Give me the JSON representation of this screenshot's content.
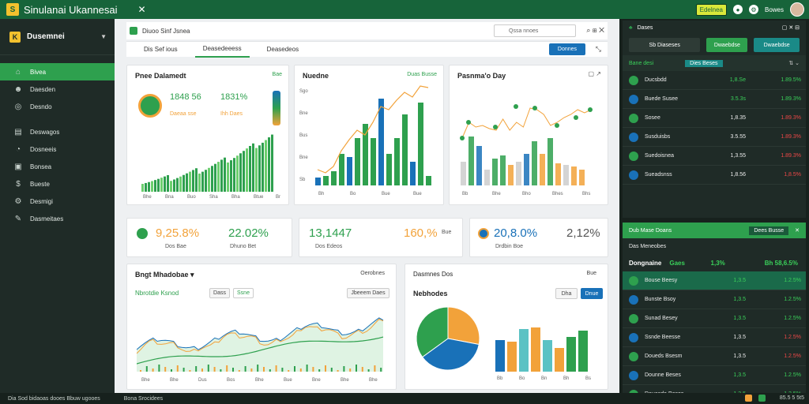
{
  "titlebar": {
    "title": "Sinulanai Ukannesai",
    "close": "✕",
    "badge": "Edelnea",
    "user": "Bowes"
  },
  "sidebar": {
    "header": "Dusemnei",
    "items": [
      {
        "label": "Bivea",
        "icon": "home-icon"
      },
      {
        "label": "Daesden",
        "icon": "people-icon"
      },
      {
        "label": "Desndo",
        "icon": "globe-icon"
      },
      {
        "label": "Deswagos",
        "icon": "book-icon"
      },
      {
        "label": "Dosneeis",
        "icon": "chart-icon"
      },
      {
        "label": "Bonsea",
        "icon": "doc-icon"
      },
      {
        "label": "Bueste",
        "icon": "dollar-icon"
      },
      {
        "label": "Desmigi",
        "icon": "gear-icon"
      },
      {
        "label": "Dasmeitaes",
        "icon": "pin-icon"
      }
    ]
  },
  "toolbar": {
    "label1": "Diuoo Sinf Jsnea",
    "search_placeholder": "Qssa nnoes"
  },
  "tabs": [
    {
      "label": "Dis Sef ious"
    },
    {
      "label": "Deasedeeess"
    },
    {
      "label": "Deasedeos"
    }
  ],
  "tab_button": "Donnes",
  "card1": {
    "title": "Pnee Dalamedt",
    "badge": "Bae",
    "value1": "1848 56",
    "value2": "1831%",
    "tag1": "Daeaa sse",
    "tag2": "Ihh Daes",
    "ticks": [
      "Bhe",
      "Bna",
      "Buo",
      "Sha",
      "Bha",
      "Btue",
      "Bna"
    ]
  },
  "card2": {
    "title": "Nuedne",
    "badge": "Duas Busse",
    "ticks": [
      "Bh",
      "Bo",
      "Bue",
      "Bue"
    ],
    "yticks": [
      "Sgo",
      "Bne",
      "Bus",
      "Bne",
      "Sb"
    ]
  },
  "card3": {
    "title": "Pasnma'o Day",
    "ticks": [
      "Bb",
      "Bhe",
      "Bho",
      "Bhes",
      "Bhs"
    ]
  },
  "kpis": [
    {
      "value": "9,25.8%",
      "sub": "Dos Bae",
      "sub2": "Dhuno Bet",
      "value2": "22.02%"
    },
    {
      "value": "13,1447",
      "sub": "Dos Edeos",
      "value2": "160,%",
      "sub2": "Bue"
    },
    {
      "value": "20,8.0%",
      "sub": "Drdbin Boe",
      "value2": "2,12%"
    }
  ],
  "card4": {
    "title": "Bngt Mhadobae",
    "link": "Oerobnes",
    "subtitle": "Nbrotdie Ksnod",
    "btn1": "Dass",
    "btn2": "Ssne",
    "btn3": "Jbeeem Daes",
    "ticks": [
      "Bhe",
      "Bhe",
      "Dus",
      "Bos",
      "Bhe",
      "Bue",
      "Bne",
      "Bhe",
      "Bhe"
    ]
  },
  "card5": {
    "title": "Dasmnes Dos",
    "subtitle": "Nebhodes",
    "btn1": "Bue",
    "btn2": "Dha",
    "btn3": "Dnue",
    "ticks": [
      "Bb",
      "Bo",
      "Bn",
      "Bh",
      "Bs"
    ]
  },
  "right1": {
    "header": "Dases",
    "tab1": "Sb Diaseses",
    "tab2": "Dwaebdse",
    "section": "Bane desi",
    "section_btn": "Dies Beses",
    "rows": [
      {
        "name": "Ducsbdd",
        "val": "1,8.Se",
        "chg": "1.89.5%",
        "pos": true
      },
      {
        "name": "Buede Susee",
        "val": "3.5.3s",
        "chg": "1.89.3%",
        "pos": true
      },
      {
        "name": "Sosee",
        "val": "1,8.35",
        "chg": "1.89.3%",
        "pos": false
      },
      {
        "name": "Susduisbs",
        "val": "3.5.55",
        "chg": "1.89.3%",
        "pos": false
      },
      {
        "name": "Suedoisnea",
        "val": "1,3.55",
        "chg": "1.89.3%",
        "pos": false
      },
      {
        "name": "Sueadsnss",
        "val": "1,8.56",
        "chg": "1,8.5%",
        "pos": false
      }
    ]
  },
  "right2": {
    "header": "Dub Mase Doans",
    "btn": "Dees Busse",
    "sub": "Das Meneobes",
    "title": "Dongnaine",
    "title_tag": "Gaes",
    "title_val": "1,3%",
    "title_chg": "Bh 58,6.5%",
    "rows": [
      {
        "name": "Bouse Beesy",
        "val": "1,3.5",
        "chg": "1.2.5%",
        "pos": true
      },
      {
        "name": "Bunste Bsoy",
        "val": "1,3.5",
        "chg": "1.2.5%",
        "pos": true
      },
      {
        "name": "Sunad Besey",
        "val": "1,3.5",
        "chg": "1.2.5%",
        "pos": true
      },
      {
        "name": "Ssnde Beesse",
        "val": "1,3.5",
        "chg": "1.2.5%",
        "pos": false
      },
      {
        "name": "Doueds Bsesm",
        "val": "1,3.5",
        "chg": "1.2.5%",
        "pos": false
      },
      {
        "name": "Dounne Beses",
        "val": "1,3.5",
        "chg": "1.2.5%",
        "pos": true
      },
      {
        "name": "Douesde Bosos",
        "val": "1,3.5",
        "chg": "1.2.5%",
        "pos": true
      }
    ]
  },
  "statusbar": {
    "left": "Dia Sod bidaoas dooes Bbuw ugooes",
    "left2": "Bona Srocidees",
    "right": "85.5 5 5t5"
  },
  "colors": {
    "accent": "#2ea04e",
    "blue": "#1971b8",
    "orange": "#f2a23a",
    "red": "#ef4848"
  }
}
